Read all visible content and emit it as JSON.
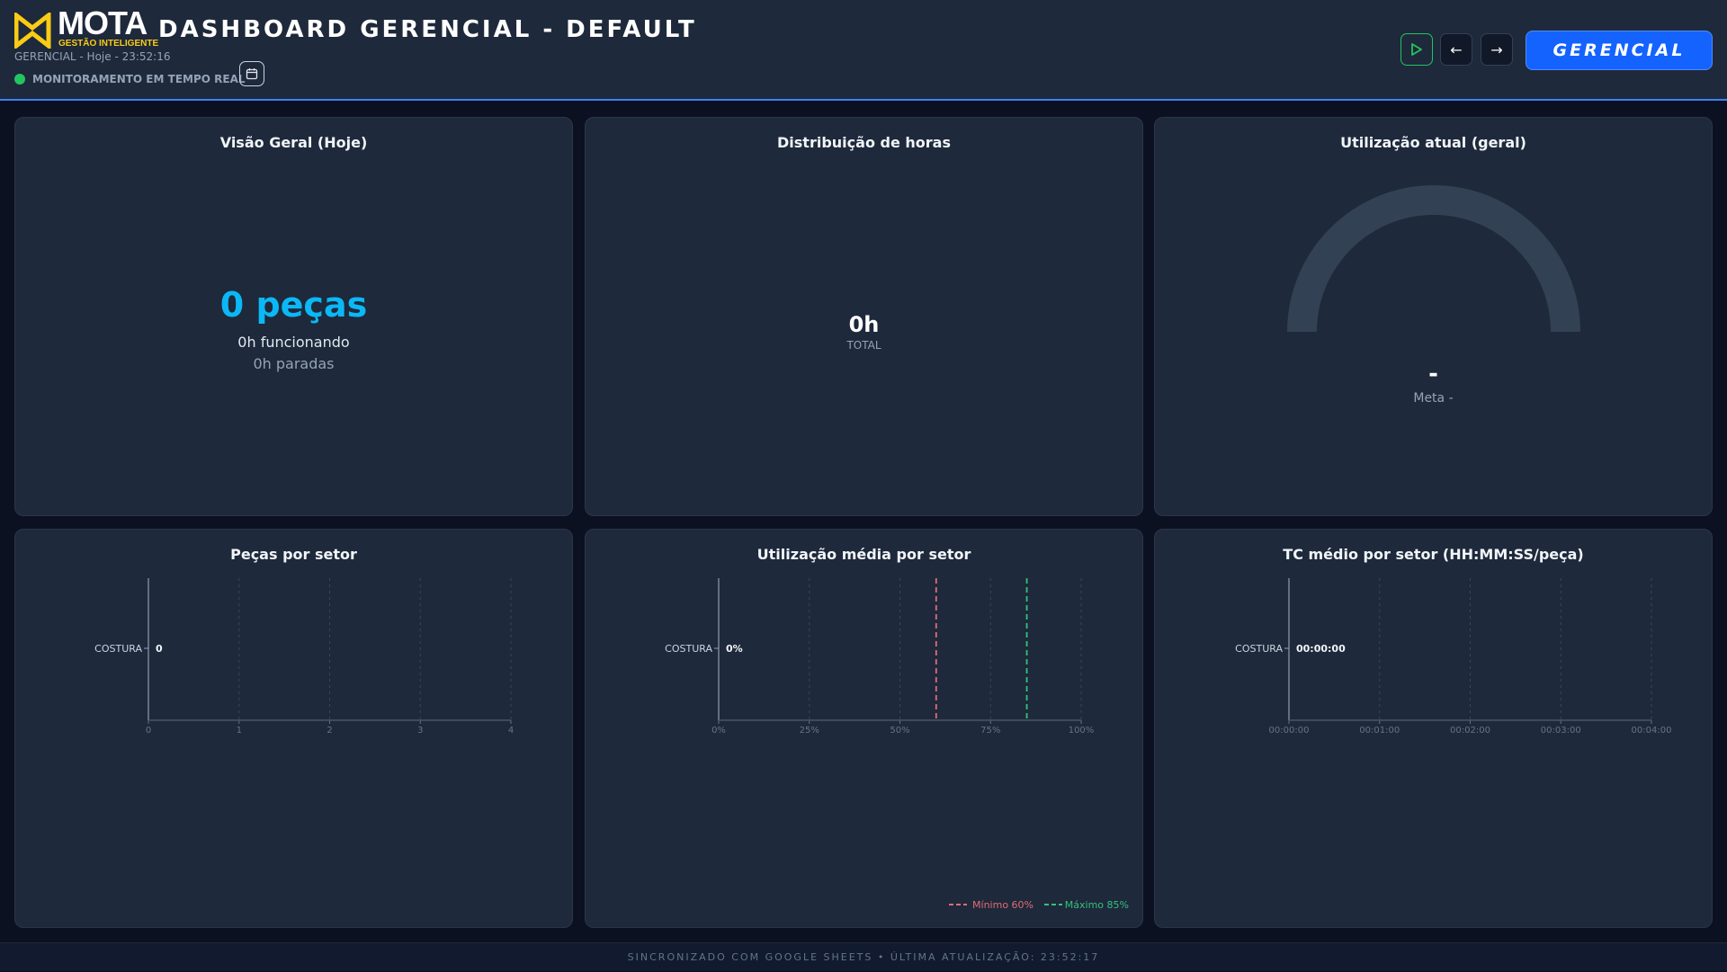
{
  "header": {
    "logo_text": "MOTA",
    "logo_sub": "GESTÃO INTELIGENTE",
    "title": "DASHBOARD GERENCIAL - DEFAULT",
    "subtitle": "GERENCIAL - Hoje - 23:52:16",
    "live_label": "MONITORAMENTO EM TEMPO REAL",
    "play_icon": "play-icon",
    "prev_label": "←",
    "next_label": "→",
    "mode_label": "GERENCIAL",
    "live_color": "#22c55e",
    "accent": "#1463ff"
  },
  "overview": {
    "title": "Visão Geral (Hoje)",
    "pieces": "0 peças",
    "running": "0h funcionando",
    "stopped": "0h paradas"
  },
  "hours": {
    "title": "Distribuição de horas",
    "total": "0h",
    "total_label": "TOTAL"
  },
  "utilization": {
    "title": "Utilização atual (geral)",
    "value": "-",
    "goal": "Meta -",
    "gauge_fraction": 0
  },
  "chart_data": [
    {
      "type": "bar",
      "title": "Peças por setor",
      "categories": [
        "COSTURA"
      ],
      "values": [
        0
      ],
      "value_labels": [
        "0"
      ],
      "xlim": [
        0,
        4
      ],
      "x_ticks": [
        "0",
        "1",
        "2",
        "3",
        "4"
      ],
      "grid": true
    },
    {
      "type": "bar",
      "title": "Utilização média por setor",
      "categories": [
        "COSTURA"
      ],
      "values": [
        0
      ],
      "value_labels": [
        "0%"
      ],
      "xlim": [
        0,
        100
      ],
      "x_ticks": [
        "0%",
        "25%",
        "50%",
        "75%",
        "100%"
      ],
      "grid": true,
      "reference_lines": [
        {
          "label": "Mínimo 60%",
          "value": 60,
          "color": "#e06c75"
        },
        {
          "label": "Máximo 85%",
          "value": 85,
          "color": "#34c17a"
        }
      ],
      "legend": "bottom-right"
    },
    {
      "type": "bar",
      "title": "TC médio por setor (HH:MM:SS/peça)",
      "categories": [
        "COSTURA"
      ],
      "values": [
        0
      ],
      "value_labels": [
        "00:00:00"
      ],
      "xlim": [
        0,
        240
      ],
      "x_ticks": [
        "00:00:00",
        "00:01:00",
        "00:02:00",
        "00:03:00",
        "00:04:00"
      ],
      "grid": true
    }
  ],
  "footer": {
    "text": "SINCRONIZADO COM GOOGLE SHEETS • ÚLTIMA ATUALIZAÇÃO: 23:52:17"
  }
}
